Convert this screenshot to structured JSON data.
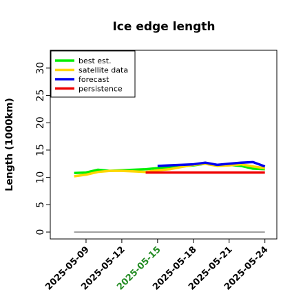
{
  "chart_data": {
    "type": "line",
    "title": "Ice edge length",
    "ylabel": "Length (1000km)",
    "xlabel": "",
    "ylim": [
      0,
      32
    ],
    "yticks": [
      0,
      5,
      10,
      15,
      20,
      25,
      30
    ],
    "xlim": [
      "2025-05-06",
      "2025-05-25"
    ],
    "xticks": [
      {
        "label": "2025-05-09",
        "date": "2025-05-09",
        "color": "#000000"
      },
      {
        "label": "2025-05-12",
        "date": "2025-05-12",
        "color": "#000000"
      },
      {
        "label": "2025-05-15",
        "date": "2025-05-15",
        "color": "#228B22"
      },
      {
        "label": "2025-05-18",
        "date": "2025-05-18",
        "color": "#000000"
      },
      {
        "label": "2025-05-21",
        "date": "2025-05-21",
        "color": "#000000"
      },
      {
        "label": "2025-05-24",
        "date": "2025-05-24",
        "color": "#000000"
      }
    ],
    "grid": false,
    "legend_position": "top-left",
    "series": [
      {
        "name": "best est.",
        "color": "#00ee00",
        "points": [
          [
            "2025-05-08",
            10.8
          ],
          [
            "2025-05-09",
            10.9
          ],
          [
            "2025-05-10",
            11.4
          ],
          [
            "2025-05-11",
            11.2
          ],
          [
            "2025-05-12",
            11.3
          ],
          [
            "2025-05-13",
            11.4
          ],
          [
            "2025-05-14",
            11.5
          ],
          [
            "2025-05-15",
            11.7
          ],
          [
            "2025-05-16",
            11.8
          ],
          [
            "2025-05-17",
            12.0
          ],
          [
            "2025-05-18",
            12.2
          ],
          [
            "2025-05-19",
            12.5
          ],
          [
            "2025-05-20",
            12.2
          ],
          [
            "2025-05-21",
            12.3
          ],
          [
            "2025-05-22",
            12.1
          ],
          [
            "2025-05-23",
            11.6
          ],
          [
            "2025-05-24",
            11.5
          ]
        ]
      },
      {
        "name": "satellite data",
        "color": "#ffd700",
        "points": [
          [
            "2025-05-08",
            10.2
          ],
          [
            "2025-05-09",
            10.5
          ],
          [
            "2025-05-10",
            11.0
          ],
          [
            "2025-05-11",
            11.2
          ],
          [
            "2025-05-12",
            11.2
          ],
          [
            "2025-05-13",
            11.1
          ],
          [
            "2025-05-14",
            11.0
          ],
          [
            "2025-05-15",
            11.3
          ],
          [
            "2025-05-16",
            11.5
          ],
          [
            "2025-05-17",
            11.9
          ],
          [
            "2025-05-18",
            12.3
          ],
          [
            "2025-05-19",
            12.5
          ],
          [
            "2025-05-20",
            12.1
          ],
          [
            "2025-05-21",
            12.2
          ],
          [
            "2025-05-22",
            12.4
          ],
          [
            "2025-05-23",
            12.0
          ],
          [
            "2025-05-24",
            11.7
          ]
        ]
      },
      {
        "name": "forecast",
        "color": "#0000ee",
        "points": [
          [
            "2025-05-15",
            12.1
          ],
          [
            "2025-05-16",
            12.2
          ],
          [
            "2025-05-17",
            12.3
          ],
          [
            "2025-05-18",
            12.4
          ],
          [
            "2025-05-19",
            12.7
          ],
          [
            "2025-05-20",
            12.3
          ],
          [
            "2025-05-21",
            12.5
          ],
          [
            "2025-05-22",
            12.7
          ],
          [
            "2025-05-23",
            12.8
          ],
          [
            "2025-05-24",
            12.0
          ]
        ]
      },
      {
        "name": "persistence",
        "color": "#ee0000",
        "points": [
          [
            "2025-05-14",
            10.9
          ],
          [
            "2025-05-24",
            10.9
          ]
        ]
      }
    ],
    "baseline": {
      "color": "#808080",
      "points": [
        [
          "2025-05-08",
          0
        ],
        [
          "2025-05-24",
          0
        ]
      ]
    }
  }
}
